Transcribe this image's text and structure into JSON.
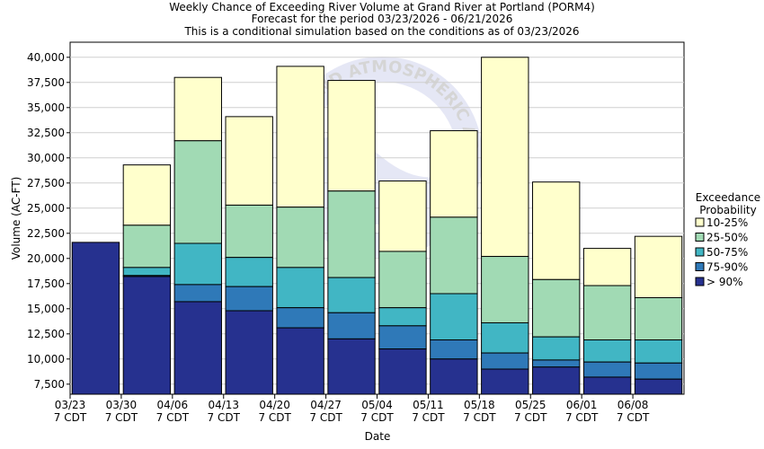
{
  "chart_data": {
    "type": "bar",
    "stacked": true,
    "title": "Weekly Chance of Exceeding River Volume at Grand River at Portland (PORM4)",
    "subtitle1": "Forecast for the period 03/23/2026 - 06/21/2026",
    "subtitle2": "This is a conditional simulation based on the conditions as of 03/23/2026",
    "xlabel": "Date",
    "ylabel": "Volume (AC-FT)",
    "ylim": [
      6500,
      41500
    ],
    "yticks": [
      7500,
      10000,
      12500,
      15000,
      17500,
      20000,
      22500,
      25000,
      27500,
      30000,
      32500,
      35000,
      37500,
      40000
    ],
    "ytick_labels": [
      "7,500",
      "10,000",
      "12,500",
      "15,000",
      "17,500",
      "20,000",
      "22,500",
      "25,000",
      "27,500",
      "30,000",
      "32,500",
      "35,000",
      "37,500",
      "40,000"
    ],
    "categories": [
      {
        "date": "03/23",
        "time": "7 CDT"
      },
      {
        "date": "03/30",
        "time": "7 CDT"
      },
      {
        "date": "04/06",
        "time": "7 CDT"
      },
      {
        "date": "04/13",
        "time": "7 CDT"
      },
      {
        "date": "04/20",
        "time": "7 CDT"
      },
      {
        "date": "04/27",
        "time": "7 CDT"
      },
      {
        "date": "05/04",
        "time": "7 CDT"
      },
      {
        "date": "05/11",
        "time": "7 CDT"
      },
      {
        "date": "05/18",
        "time": "7 CDT"
      },
      {
        "date": "05/25",
        "time": "7 CDT"
      },
      {
        "date": "06/01",
        "time": "7 CDT"
      },
      {
        "date": "06/08",
        "time": "7 CDT"
      }
    ],
    "legend_title_1": "Exceedance",
    "legend_title_2": "Probability",
    "legend_position": "right",
    "grid": true,
    "series": [
      {
        "name": "> 90%",
        "color": "#26318f",
        "top": [
          21600,
          18200,
          15700,
          14800,
          13100,
          12000,
          11000,
          10000,
          9000,
          9200,
          8200,
          8000
        ]
      },
      {
        "name": "75-90%",
        "color": "#2f79b8",
        "top": [
          21600,
          18300,
          17400,
          17200,
          15100,
          14600,
          13300,
          11900,
          10600,
          9900,
          9700,
          9600
        ]
      },
      {
        "name": "50-75%",
        "color": "#41b6c4",
        "top": [
          21600,
          19100,
          21500,
          20100,
          19100,
          18100,
          15100,
          16500,
          13600,
          12200,
          11900,
          11900
        ]
      },
      {
        "name": "25-50%",
        "color": "#a1dab4",
        "top": [
          21600,
          23300,
          31700,
          25300,
          25100,
          26700,
          20700,
          24100,
          20200,
          17900,
          17300,
          16100
        ]
      },
      {
        "name": "10-25%",
        "color": "#ffffcc",
        "top": [
          21600,
          29300,
          38000,
          34100,
          39100,
          37700,
          27700,
          32700,
          40000,
          27600,
          21000,
          22200
        ]
      }
    ],
    "legend_order": [
      "10-25%",
      "25-50%",
      "50-75%",
      "75-90%",
      "> 90%"
    ]
  },
  "watermark": "NATIONAL OCEANIC AND ATMOSPHERIC ADMINISTRATION"
}
